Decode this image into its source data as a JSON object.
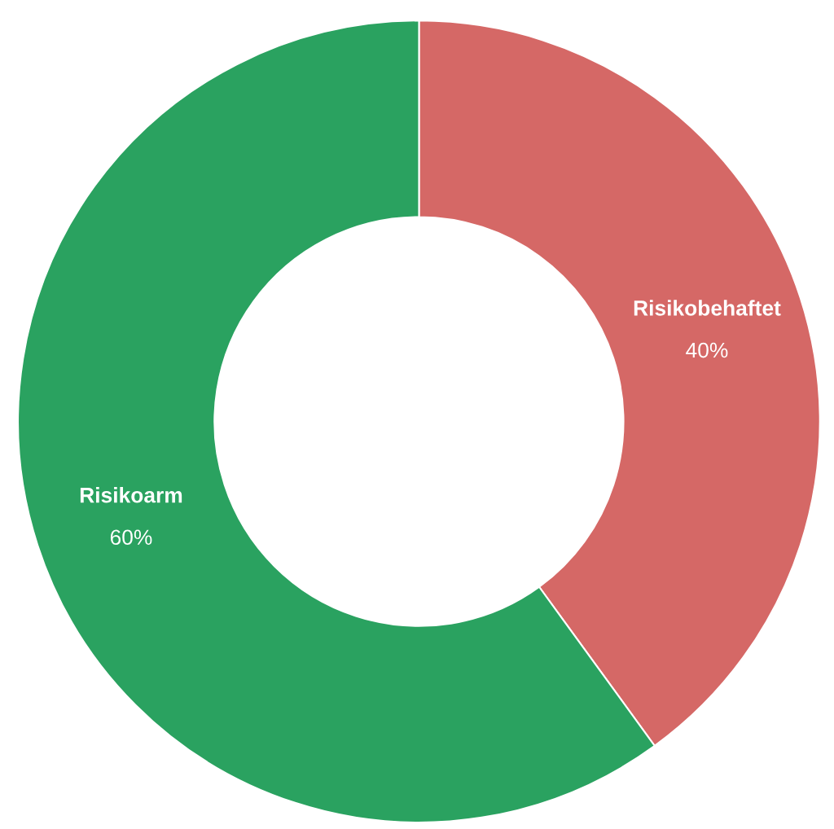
{
  "chart_data": {
    "type": "donut",
    "categories": [
      "Risikobehaftet",
      "Risikoarm"
    ],
    "values": [
      40,
      60
    ],
    "colors": [
      "#d56866",
      "#2aa260"
    ],
    "value_labels": [
      "40%",
      "60%"
    ]
  }
}
